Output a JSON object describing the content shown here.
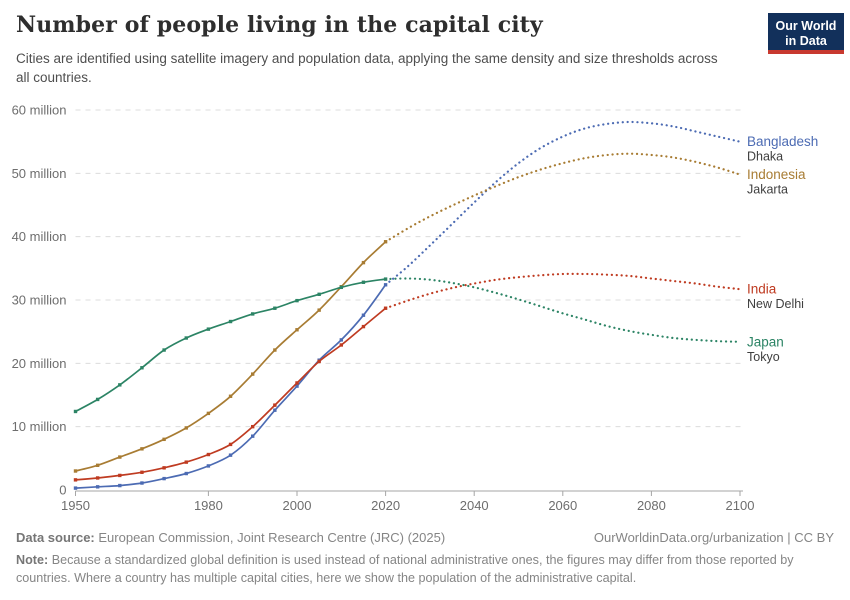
{
  "header": {
    "title": "Number of people living in the capital city",
    "subtitle": "Cities are identified using satellite imagery and population data, applying the same density and size thresholds across all countries.",
    "logo": {
      "line1": "Our World",
      "line2": "in Data",
      "bg_color": "#12305B",
      "accent_color": "#C8392F"
    }
  },
  "footer": {
    "data_source_label": "Data source:",
    "data_source": "European Commission, Joint Research Centre (JRC) (2025)",
    "attribution": "OurWorldinData.org/urbanization | CC BY",
    "note_label": "Note:",
    "note": "Because a standardized global definition is used instead of national administrative ones, the figures may differ from those reported by countries. Where a country has multiple capital cities, here we show the population of the administrative capital."
  },
  "chart_data": {
    "type": "line",
    "title": "Number of people living in the capital city",
    "units": "million people",
    "grid": true,
    "legend_position": "right-end-labels",
    "x_domain": [
      1950,
      2100
    ],
    "y_domain": [
      0,
      60
    ],
    "x_ticks": [
      1950,
      1980,
      2000,
      2020,
      2040,
      2060,
      2080,
      2100
    ],
    "y_ticks": [
      {
        "value": 0,
        "label": "0"
      },
      {
        "value": 10,
        "label": "10 million"
      },
      {
        "value": 20,
        "label": "20 million"
      },
      {
        "value": 30,
        "label": "30 million"
      },
      {
        "value": 40,
        "label": "40 million"
      },
      {
        "value": 50,
        "label": "50 million"
      },
      {
        "value": 60,
        "label": "60 million"
      }
    ],
    "historical_years": [
      1950,
      1955,
      1960,
      1965,
      1970,
      1975,
      1980,
      1985,
      1990,
      1995,
      2000,
      2005,
      2010,
      2015,
      2020
    ],
    "projection_years": [
      2020,
      2025,
      2030,
      2035,
      2040,
      2045,
      2050,
      2055,
      2060,
      2065,
      2070,
      2075,
      2080,
      2085,
      2090,
      2095,
      2100
    ],
    "line_style": {
      "historical": "solid-with-square-markers",
      "projection": "dotted"
    },
    "series": [
      {
        "name": "Bangladesh",
        "city": "Dhaka",
        "color": "#4C6BB3",
        "historical": [
          0.3,
          0.5,
          0.7,
          1.1,
          1.8,
          2.6,
          3.8,
          5.5,
          8.5,
          12.6,
          16.4,
          20.5,
          23.7,
          27.6,
          32.4
        ],
        "projection": [
          32.4,
          35.3,
          38.6,
          42.0,
          45.4,
          48.7,
          51.6,
          54.0,
          55.8,
          57.1,
          57.8,
          58.1,
          57.9,
          57.4,
          56.6,
          55.8,
          55.0
        ]
      },
      {
        "name": "Indonesia",
        "city": "Jakarta",
        "color": "#A87C33",
        "historical": [
          3.0,
          3.9,
          5.2,
          6.5,
          8.0,
          9.8,
          12.1,
          14.8,
          18.3,
          22.1,
          25.3,
          28.4,
          32.1,
          35.9,
          39.2
        ],
        "projection": [
          39.2,
          41.3,
          43.2,
          44.9,
          46.5,
          48.0,
          49.4,
          50.6,
          51.6,
          52.4,
          52.9,
          53.1,
          52.9,
          52.5,
          51.8,
          50.9,
          49.8
        ]
      },
      {
        "name": "India",
        "city": "New Delhi",
        "color": "#BF3B21",
        "historical": [
          1.6,
          1.9,
          2.3,
          2.8,
          3.5,
          4.4,
          5.6,
          7.2,
          10.0,
          13.4,
          16.9,
          20.3,
          22.9,
          25.8,
          28.7
        ],
        "projection": [
          28.7,
          29.9,
          31.0,
          31.9,
          32.6,
          33.2,
          33.6,
          33.9,
          34.1,
          34.1,
          34.0,
          33.8,
          33.4,
          33.0,
          32.6,
          32.1,
          31.7
        ]
      },
      {
        "name": "Japan",
        "city": "Tokyo",
        "color": "#2C8465",
        "historical": [
          12.4,
          14.3,
          16.6,
          19.3,
          22.1,
          24.0,
          25.4,
          26.6,
          27.8,
          28.7,
          29.9,
          30.9,
          32.0,
          32.8,
          33.3
        ],
        "projection": [
          33.3,
          33.4,
          33.2,
          32.7,
          32.0,
          31.1,
          30.1,
          29.0,
          27.9,
          26.9,
          25.9,
          25.1,
          24.5,
          24.0,
          23.7,
          23.5,
          23.4
        ]
      }
    ]
  }
}
